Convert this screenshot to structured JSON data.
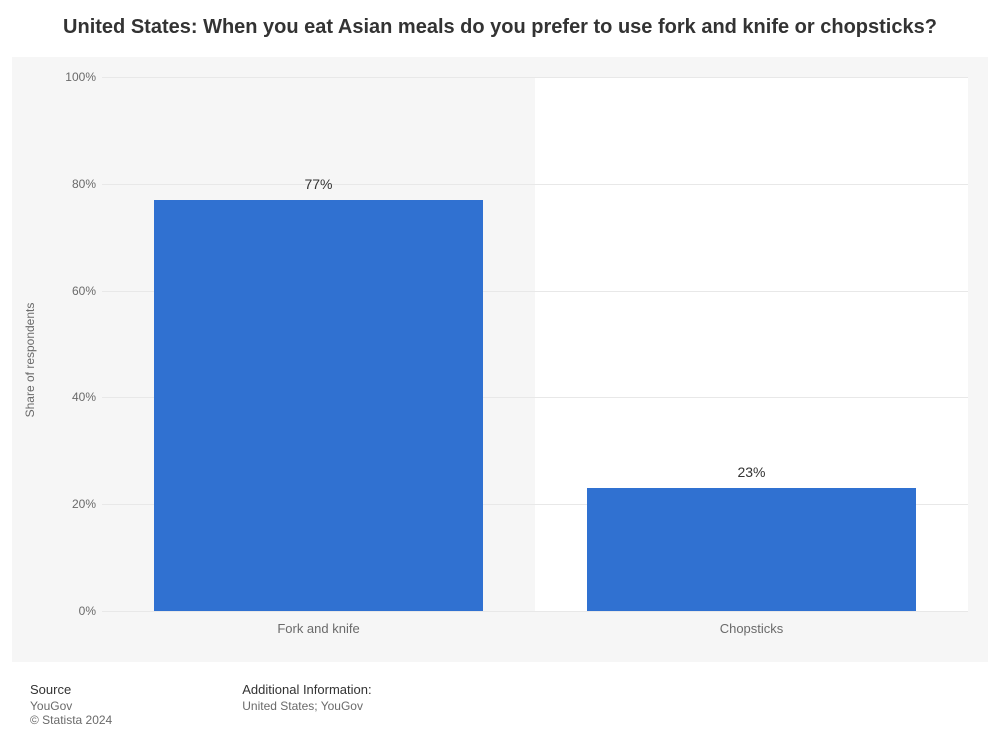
{
  "title": "United States: When you eat Asian meals do you prefer to use fork and knife or chopsticks?",
  "title_fontsize": 20,
  "chart": {
    "type": "bar",
    "background_color": "#f6f6f6",
    "band_color": "#ffffff",
    "grid_color": "#e8e8e8",
    "axis_text_color": "#6a6a6a",
    "ylabel": "Share of respondents",
    "label_fontsize": 12,
    "ylim": [
      0,
      100
    ],
    "ytick_step": 20,
    "yticks": [
      0,
      20,
      40,
      60,
      80,
      100
    ],
    "ytick_suffix": "%",
    "categories": [
      "Fork and knife",
      "Chopsticks"
    ],
    "values": [
      77,
      23
    ],
    "value_suffix": "%",
    "bar_colors": [
      "#3071d1",
      "#3071d1"
    ],
    "bar_width": 0.76,
    "value_label_color": "#333333",
    "value_label_fontsize": 14
  },
  "footer": {
    "source_heading": "Source",
    "source_lines": [
      "YouGov",
      "© Statista 2024"
    ],
    "info_heading": "Additional Information:",
    "info_lines": [
      "United States; YouGov"
    ]
  }
}
